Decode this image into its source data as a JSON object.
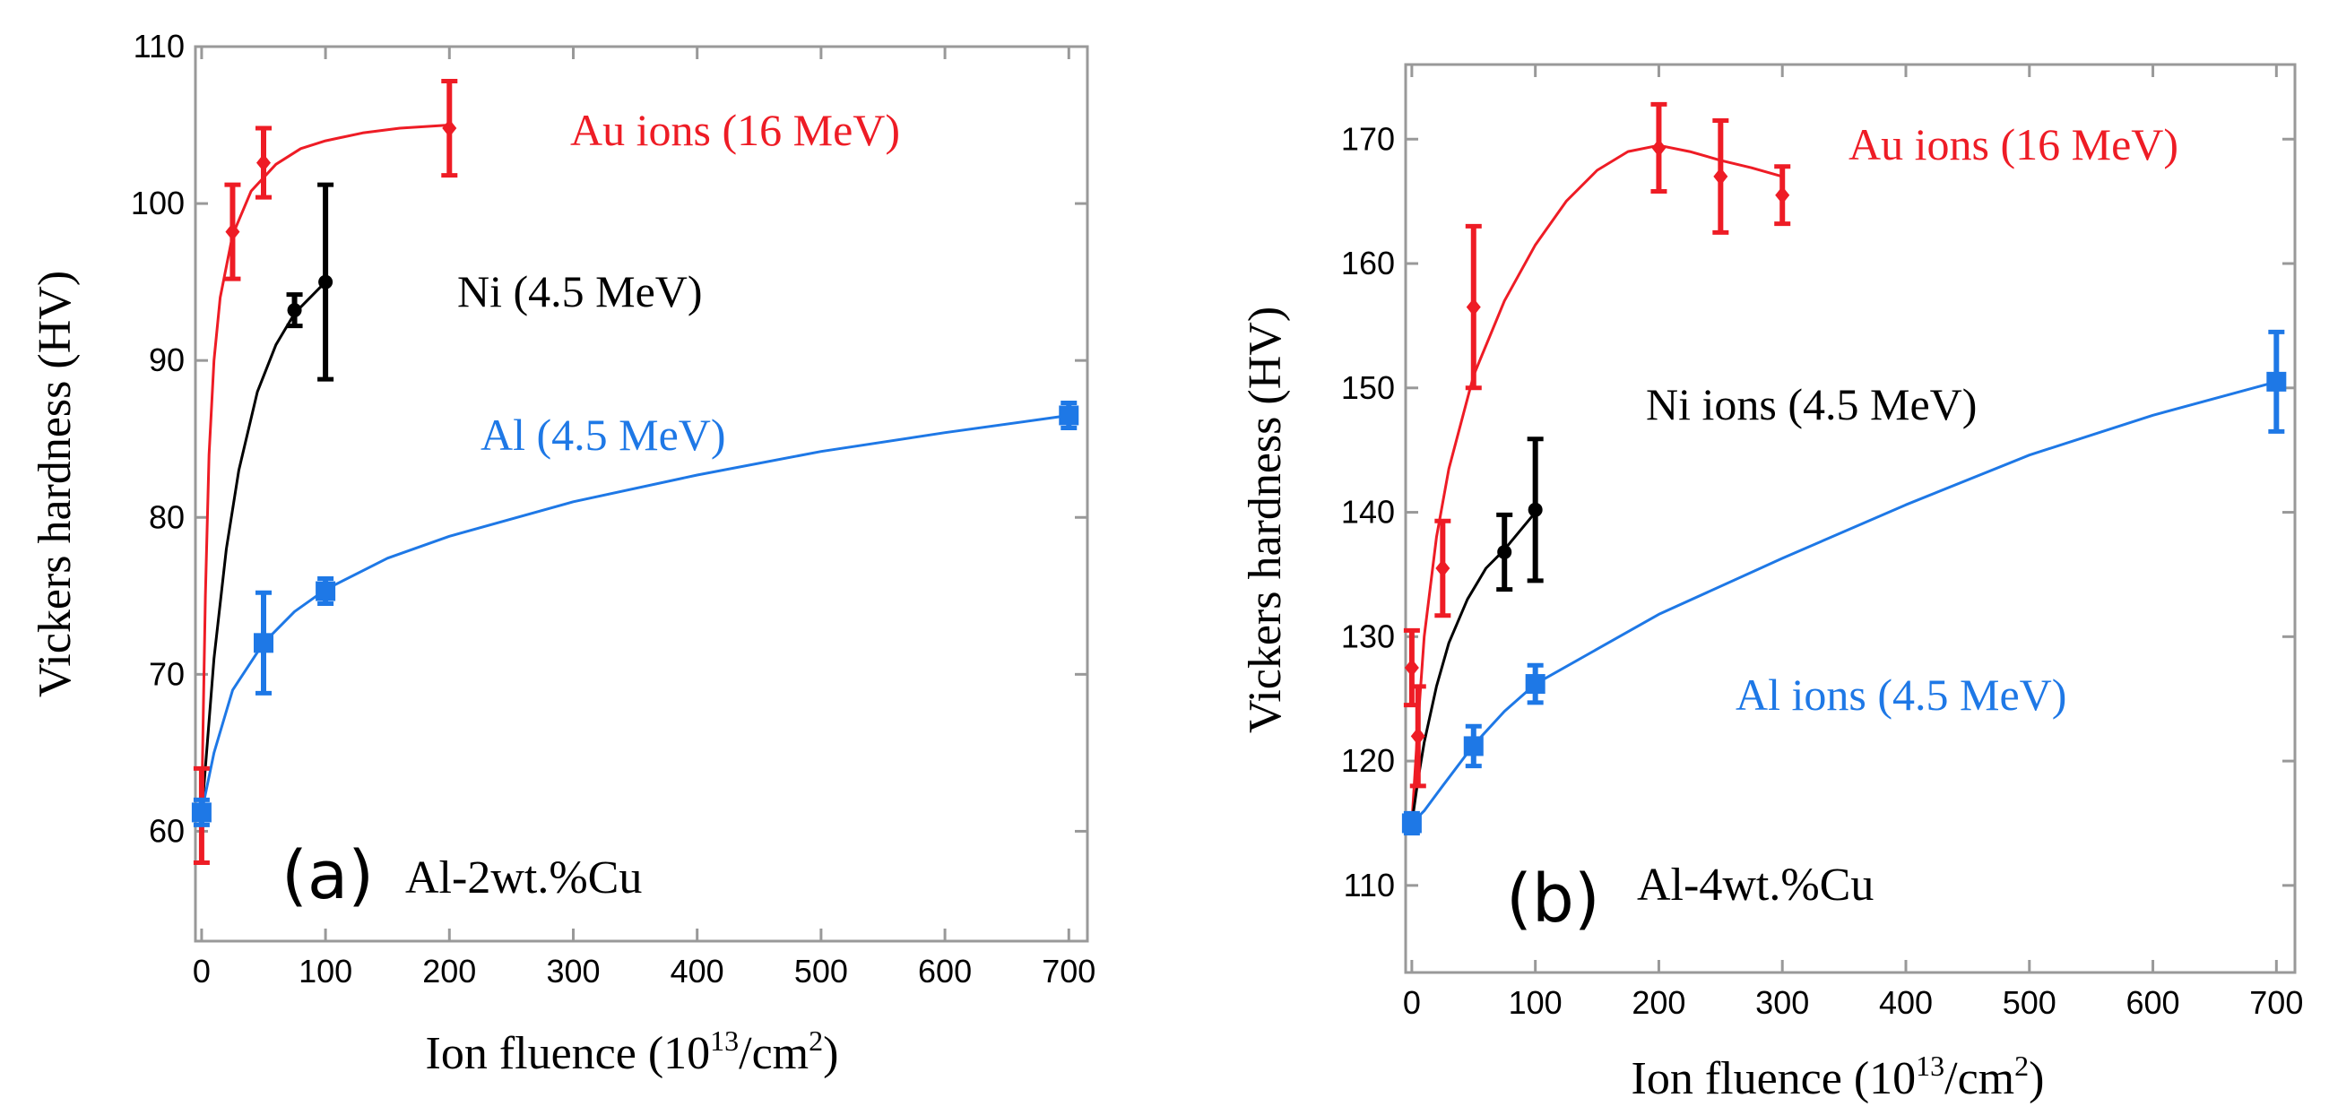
{
  "chart_data": [
    {
      "type": "scatter",
      "panel_label": "(a)",
      "alloy_label": "Al-2wt.%Cu",
      "xlabel": "Ion fluence (10",
      "xlabel_sup": "13",
      "xlabel_tail": "/cm",
      "xlabel_sup2": "2",
      "xlabel_close": ")",
      "ylabel": "Vickers hardness (HV)",
      "xlim": [
        -5,
        715
      ],
      "ylim": [
        53,
        110
      ],
      "xticks": [
        0,
        100,
        200,
        300,
        400,
        500,
        600,
        700
      ],
      "yticks": [
        60,
        70,
        80,
        90,
        100,
        110
      ],
      "series": [
        {
          "name": "Au ions (16 MeV)",
          "color": "#ee1c25",
          "marker": "diamond",
          "x": [
            0,
            25,
            50,
            200
          ],
          "y": [
            61,
            98.2,
            102.6,
            104.8
          ],
          "err": [
            3,
            3,
            2.2,
            3
          ],
          "curve_x": [
            0,
            1,
            3,
            6,
            10,
            15,
            25,
            40,
            60,
            80,
            100,
            130,
            160,
            200
          ],
          "curve_y": [
            61,
            66,
            75,
            84,
            90,
            94,
            98,
            100.8,
            102.5,
            103.5,
            104,
            104.5,
            104.8,
            105
          ]
        },
        {
          "name": "Ni (4.5 MeV)",
          "color": "#000000",
          "marker": "circle",
          "x": [
            75,
            100
          ],
          "y": [
            93.2,
            95
          ],
          "err": [
            1,
            6.2
          ],
          "curve_x": [
            0,
            5,
            10,
            20,
            30,
            45,
            60,
            75,
            90,
            100
          ],
          "curve_y": [
            61,
            66,
            71,
            78,
            83,
            88,
            91,
            93,
            94.2,
            95
          ]
        },
        {
          "name": "Al (4.5 MeV)",
          "color": "#1e78e6",
          "marker": "square",
          "x": [
            0,
            50,
            100,
            700
          ],
          "y": [
            61.2,
            72,
            75.3,
            86.5
          ],
          "err": [
            0.8,
            3.2,
            0.8,
            0.8
          ],
          "curve_x": [
            0,
            10,
            25,
            50,
            75,
            100,
            150,
            200,
            300,
            400,
            500,
            600,
            700
          ],
          "curve_y": [
            61.2,
            65,
            69,
            72,
            74,
            75.4,
            77.4,
            78.8,
            81,
            82.7,
            84.2,
            85.4,
            86.5
          ]
        }
      ]
    },
    {
      "type": "scatter",
      "panel_label": "(b)",
      "alloy_label": "Al-4wt.%Cu",
      "xlabel": "Ion fluence (10",
      "xlabel_sup": "13",
      "xlabel_tail": "/cm",
      "xlabel_sup2": "2",
      "xlabel_close": ")",
      "ylabel": "Vickers hardness (HV)",
      "xlim": [
        -5,
        715
      ],
      "ylim": [
        103,
        176
      ],
      "xticks": [
        0,
        100,
        200,
        300,
        400,
        500,
        600,
        700
      ],
      "yticks": [
        110,
        120,
        130,
        140,
        150,
        160,
        170
      ],
      "series": [
        {
          "name": "Au ions (16 MeV)",
          "color": "#ee1c25",
          "marker": "diamond",
          "x": [
            0,
            5,
            25,
            50,
            200,
            250,
            300
          ],
          "y": [
            127.5,
            122,
            135.5,
            156.5,
            169.3,
            167,
            165.5
          ],
          "err": [
            3,
            4,
            3.8,
            6.5,
            3.5,
            4.5,
            2.3
          ],
          "curve_x": [
            0,
            5,
            10,
            20,
            30,
            50,
            75,
            100,
            125,
            150,
            175,
            200,
            225,
            250,
            275,
            300
          ],
          "curve_y": [
            115,
            123,
            130,
            138,
            143.5,
            151,
            157,
            161.5,
            165,
            167.5,
            169,
            169.5,
            169,
            168.3,
            167.7,
            167
          ]
        },
        {
          "name": "Ni ions (4.5 MeV)",
          "color": "#000000",
          "marker": "circle",
          "x": [
            75,
            100
          ],
          "y": [
            136.8,
            140.2
          ],
          "err": [
            3,
            5.7
          ],
          "curve_x": [
            0,
            5,
            10,
            20,
            30,
            45,
            60,
            75,
            90,
            100
          ],
          "curve_y": [
            115,
            118.5,
            121.5,
            126,
            129.5,
            133,
            135.5,
            137,
            138.8,
            140
          ]
        },
        {
          "name": "Al ions (4.5 MeV)",
          "color": "#1e78e6",
          "marker": "square",
          "x": [
            0,
            50,
            100,
            700
          ],
          "y": [
            115,
            121.2,
            126.2,
            150.5
          ],
          "err": [
            0.8,
            1.6,
            1.5,
            4
          ],
          "curve_x": [
            0,
            10,
            25,
            50,
            75,
            100,
            150,
            200,
            300,
            400,
            500,
            600,
            700
          ],
          "curve_y": [
            115,
            116,
            118,
            121.3,
            124,
            126.2,
            129,
            131.8,
            136.3,
            140.6,
            144.6,
            147.8,
            150.5
          ]
        }
      ]
    }
  ]
}
